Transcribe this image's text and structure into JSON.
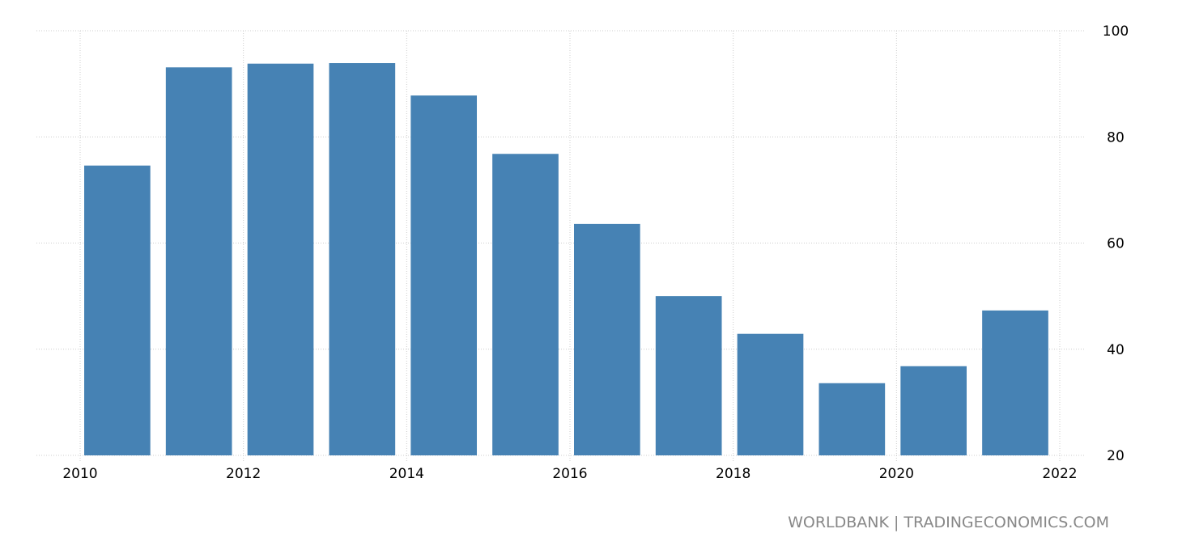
{
  "chart_data": {
    "type": "bar",
    "title": "",
    "xlabel": "",
    "ylabel": "",
    "categories": [
      "2010",
      "2011",
      "2012",
      "2013",
      "2014",
      "2015",
      "2016",
      "2017",
      "2018",
      "2019",
      "2020",
      "2021"
    ],
    "values": [
      74.6,
      93.1,
      93.8,
      93.9,
      87.8,
      76.8,
      63.6,
      50.0,
      42.9,
      33.6,
      36.8,
      47.3
    ],
    "ylim": [
      20,
      100
    ],
    "xlim": [
      2010,
      2022
    ],
    "y_ticks": [
      "20",
      "40",
      "60",
      "80",
      "100"
    ],
    "x_ticks": [
      "2010",
      "2012",
      "2014",
      "2016",
      "2018",
      "2020",
      "2022"
    ],
    "y_axis_position": "right",
    "grid": true,
    "bar_color": "#4682b4"
  },
  "footer": {
    "source": "WORLDBANK | TRADINGECONOMICS.COM"
  }
}
